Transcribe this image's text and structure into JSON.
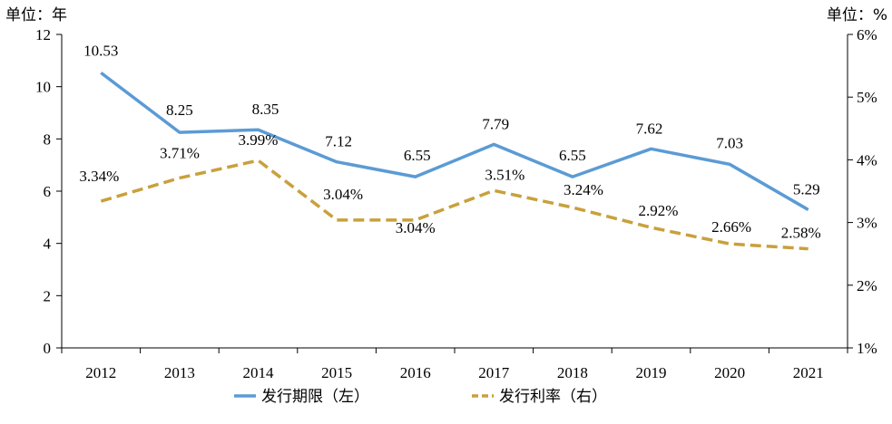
{
  "chart_data": {
    "type": "line",
    "categories": [
      "2012",
      "2013",
      "2014",
      "2015",
      "2016",
      "2017",
      "2018",
      "2019",
      "2020",
      "2021"
    ],
    "y_left": {
      "unit_label": "单位：年",
      "range": [
        0,
        12
      ],
      "ticks": [
        "0",
        "2",
        "4",
        "6",
        "8",
        "10",
        "12"
      ]
    },
    "y_right": {
      "unit_label": "单位：%",
      "range": [
        1,
        6
      ],
      "ticks": [
        "1%",
        "2%",
        "3%",
        "4%",
        "5%",
        "6%"
      ]
    },
    "series": [
      {
        "name": "发行期限（左）",
        "axis": "left",
        "color": "#5b9bd5",
        "style": "solid",
        "values": [
          10.53,
          8.25,
          8.35,
          7.12,
          6.55,
          7.79,
          6.55,
          7.62,
          7.03,
          5.29
        ],
        "labels": [
          "10.53",
          "8.25",
          "8.35",
          "7.12",
          "6.55",
          "7.79",
          "6.55",
          "7.62",
          "7.03",
          "5.29"
        ]
      },
      {
        "name": "发行利率（右）",
        "axis": "right",
        "color": "#c9a03c",
        "style": "dashed",
        "values": [
          3.34,
          3.71,
          3.99,
          3.04,
          3.04,
          3.51,
          3.24,
          2.92,
          2.66,
          2.58
        ],
        "labels": [
          "3.34%",
          "3.71%",
          "3.99%",
          "3.04%",
          "3.04%",
          "3.51%",
          "3.24%",
          "2.92%",
          "2.66%",
          "2.58%"
        ]
      }
    ],
    "grid": false,
    "legend": "bottom"
  }
}
